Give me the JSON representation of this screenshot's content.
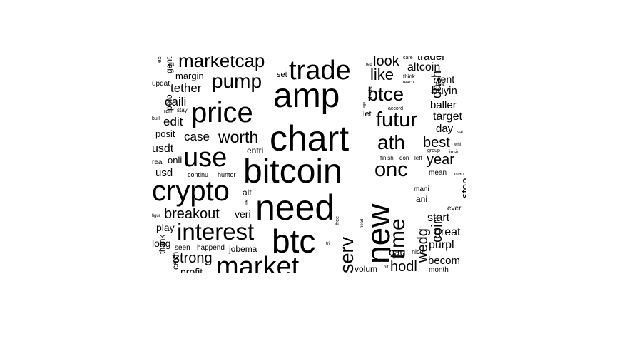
{
  "word_cloud": {
    "text_color": "#000000",
    "background_color": "#ffffff",
    "words": [
      "bitcoin",
      "chart",
      "need",
      "amp",
      "new",
      "btc",
      "crypto",
      "price",
      "trade",
      "market",
      "use",
      "interest",
      "time",
      "onc",
      "futur",
      "serv",
      "btce",
      "ath",
      "pump",
      "marketcap",
      "worth",
      "breakout",
      "like",
      "look",
      "wedg",
      "coin",
      "strong",
      "year",
      "best",
      "hodl",
      "case",
      "buyin",
      "dash",
      "daili",
      "tether",
      "edit",
      "usdt",
      "usd",
      "altcoin",
      "target",
      "great",
      "purpl",
      "start",
      "stop",
      "bag",
      "trader",
      "rent",
      "baller",
      "day",
      "becom",
      "long",
      "play",
      "onli",
      "posit",
      "margin",
      "polo",
      "veri",
      "entri",
      "alt",
      "set",
      "gent",
      "updat",
      "real",
      "cash",
      "seen",
      "happend",
      "jobema",
      "profit",
      "volum",
      "mani",
      "ani",
      "everi",
      "mean",
      "month",
      "continu",
      "hunter",
      "nice",
      "let",
      "decis",
      "finish",
      "don",
      "left",
      "care",
      "think",
      "reach",
      "clear",
      "accord",
      "group",
      "insid",
      "whi",
      "sat",
      "man",
      "peopl",
      "excit",
      "exit",
      "bull",
      "ralli",
      "stay",
      "figur",
      "free",
      "head",
      "red",
      "thank",
      "fi",
      "hit",
      "tri",
      "ago",
      "sell"
    ]
  }
}
